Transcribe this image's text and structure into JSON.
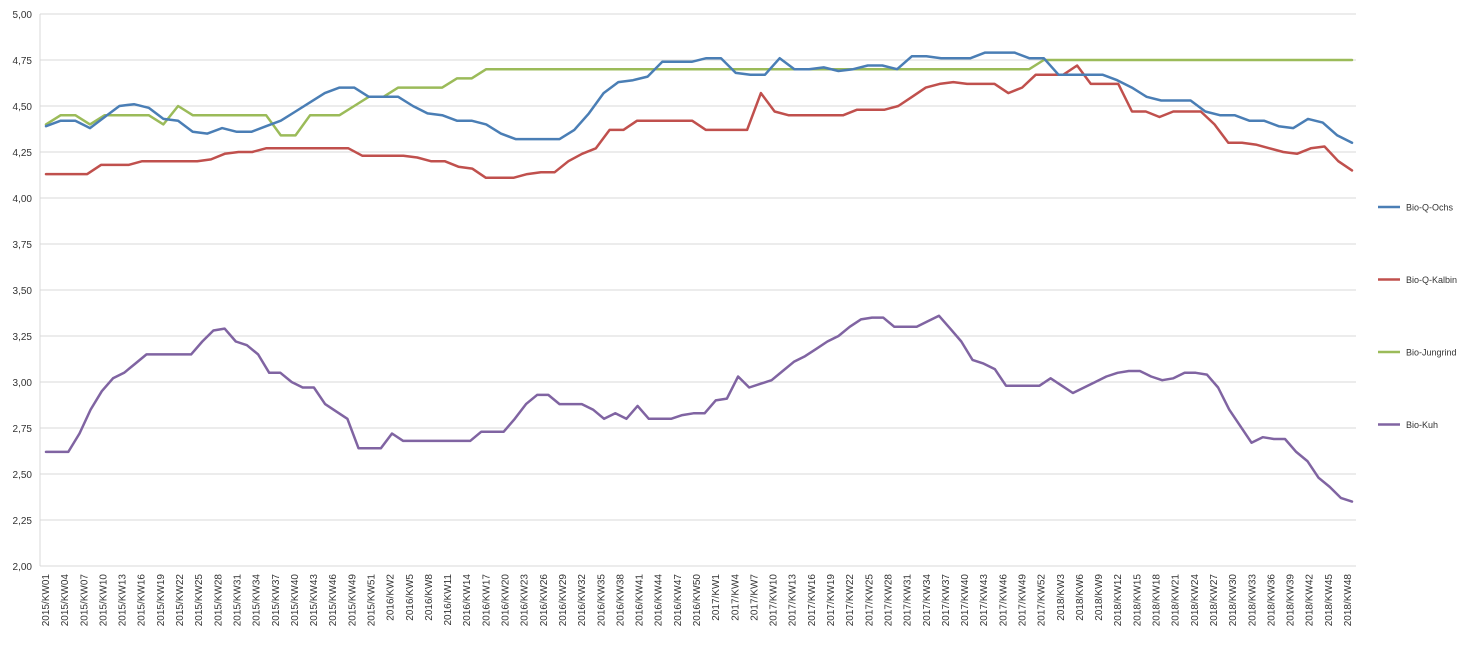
{
  "chart_data": {
    "type": "line",
    "title": "",
    "xlabel": "",
    "ylabel": "",
    "ylim": [
      2.0,
      5.0
    ],
    "y_ticks": [
      "2,00",
      "2,25",
      "2,50",
      "2,75",
      "3,00",
      "3,25",
      "3,50",
      "3,75",
      "4,00",
      "4,25",
      "4,50",
      "4,75",
      "5,00"
    ],
    "grid": "horizontal",
    "legend_position": "right",
    "x_tick_labels": [
      "2015/KW01",
      "2015/KW04",
      "2015/KW07",
      "2015/KW10",
      "2015/KW13",
      "2015/KW16",
      "2015/KW19",
      "2015/KW22",
      "2015/KW25",
      "2015/KW28",
      "2015/KW31",
      "2015/KW34",
      "2015/KW37",
      "2015/KW40",
      "2015/KW43",
      "2015/KW46",
      "2015/KW49",
      "2015/KW51",
      "2016/KW2",
      "2016/KW5",
      "2016/KW8",
      "2016/KW11",
      "2016/KW14",
      "2016/KW17",
      "2016/KW20",
      "2016/KW23",
      "2016/KW26",
      "2016/KW29",
      "2016/KW32",
      "2016/KW35",
      "2016/KW38",
      "2016/KW41",
      "2016/KW44",
      "2016/KW47",
      "2016/KW50",
      "2017/KW1",
      "2017/KW4",
      "2017/KW7",
      "2017/KW10",
      "2017/KW13",
      "2017/KW16",
      "2017/KW19",
      "2017/KW22",
      "2017/KW25",
      "2017/KW28",
      "2017/KW31",
      "2017/KW34",
      "2017/KW37",
      "2017/KW40",
      "2017/KW43",
      "2017/KW46",
      "2017/KW49",
      "2017/KW52",
      "2018/KW3",
      "2018/KW6",
      "2018/KW9",
      "2018/KW12",
      "2018/KW15",
      "2018/KW18",
      "2018/KW21",
      "2018/KW24",
      "2018/KW27",
      "2018/KW30",
      "2018/KW33",
      "2018/KW36",
      "2018/KW39",
      "2018/KW42",
      "2018/KW45",
      "2018/KW48"
    ],
    "series": [
      {
        "name": "Bio-Q-Ochs",
        "color": "#4a7eb5",
        "values": [
          4.39,
          4.42,
          4.42,
          4.38,
          4.44,
          4.5,
          4.51,
          4.49,
          4.43,
          4.42,
          4.36,
          4.35,
          4.38,
          4.36,
          4.36,
          4.39,
          4.42,
          4.47,
          4.52,
          4.57,
          4.6,
          4.6,
          4.55,
          4.55,
          4.55,
          4.5,
          4.46,
          4.45,
          4.42,
          4.42,
          4.4,
          4.35,
          4.32,
          4.32,
          4.32,
          4.32,
          4.37,
          4.46,
          4.57,
          4.63,
          4.64,
          4.66,
          4.74,
          4.74,
          4.74,
          4.76,
          4.76,
          4.68,
          4.67,
          4.67,
          4.76,
          4.7,
          4.7,
          4.71,
          4.69,
          4.7,
          4.72,
          4.72,
          4.7,
          4.77,
          4.77,
          4.76,
          4.76,
          4.76,
          4.79,
          4.79,
          4.79,
          4.76,
          4.76,
          4.67,
          4.67,
          4.67,
          4.67,
          4.64,
          4.6,
          4.55,
          4.53,
          4.53,
          4.53,
          4.47,
          4.45,
          4.45,
          4.42,
          4.42,
          4.39,
          4.38,
          4.43,
          4.41,
          4.34,
          4.3
        ]
      },
      {
        "name": "Bio-Q-Kalbin",
        "color": "#c0504d",
        "values": [
          4.13,
          4.13,
          4.13,
          4.13,
          4.18,
          4.18,
          4.18,
          4.2,
          4.2,
          4.2,
          4.2,
          4.2,
          4.21,
          4.24,
          4.25,
          4.25,
          4.27,
          4.27,
          4.27,
          4.27,
          4.27,
          4.27,
          4.27,
          4.23,
          4.23,
          4.23,
          4.23,
          4.22,
          4.2,
          4.2,
          4.17,
          4.16,
          4.11,
          4.11,
          4.11,
          4.13,
          4.14,
          4.14,
          4.2,
          4.24,
          4.27,
          4.37,
          4.37,
          4.42,
          4.42,
          4.42,
          4.42,
          4.42,
          4.37,
          4.37,
          4.37,
          4.37,
          4.57,
          4.47,
          4.45,
          4.45,
          4.45,
          4.45,
          4.45,
          4.48,
          4.48,
          4.48,
          4.5,
          4.55,
          4.6,
          4.62,
          4.63,
          4.62,
          4.62,
          4.62,
          4.57,
          4.6,
          4.67,
          4.67,
          4.67,
          4.72,
          4.62,
          4.62,
          4.62,
          4.47,
          4.47,
          4.44,
          4.47,
          4.47,
          4.47,
          4.4,
          4.3,
          4.3,
          4.29,
          4.27,
          4.25,
          4.24,
          4.27,
          4.28,
          4.2,
          4.15
        ]
      },
      {
        "name": "Bio-Jungrind",
        "color": "#9bbb59",
        "values": [
          4.4,
          4.45,
          4.45,
          4.4,
          4.45,
          4.45,
          4.45,
          4.45,
          4.4,
          4.5,
          4.45,
          4.45,
          4.45,
          4.45,
          4.45,
          4.45,
          4.34,
          4.34,
          4.45,
          4.45,
          4.45,
          4.5,
          4.55,
          4.55,
          4.6,
          4.6,
          4.6,
          4.6,
          4.65,
          4.65,
          4.7,
          4.7,
          4.7,
          4.7,
          4.7,
          4.7,
          4.7,
          4.7,
          4.7,
          4.7,
          4.7,
          4.7,
          4.7,
          4.7,
          4.7,
          4.7,
          4.7,
          4.7,
          4.7,
          4.7,
          4.7,
          4.7,
          4.7,
          4.7,
          4.7,
          4.7,
          4.7,
          4.7,
          4.7,
          4.7,
          4.7,
          4.7,
          4.7,
          4.7,
          4.7,
          4.7,
          4.7,
          4.7,
          4.75,
          4.75,
          4.75,
          4.75,
          4.75,
          4.75,
          4.75,
          4.75,
          4.75,
          4.75,
          4.75,
          4.75,
          4.75,
          4.75,
          4.75,
          4.75,
          4.75,
          4.75,
          4.75,
          4.75,
          4.75,
          4.75
        ]
      },
      {
        "name": "Bio-Kuh",
        "color": "#8064a2",
        "values": [
          2.62,
          2.62,
          2.62,
          2.72,
          2.85,
          2.95,
          3.02,
          3.05,
          3.1,
          3.15,
          3.15,
          3.15,
          3.15,
          3.15,
          3.22,
          3.28,
          3.29,
          3.22,
          3.2,
          3.15,
          3.05,
          3.05,
          3.0,
          2.97,
          2.97,
          2.88,
          2.84,
          2.8,
          2.64,
          2.64,
          2.64,
          2.72,
          2.68,
          2.68,
          2.68,
          2.68,
          2.68,
          2.68,
          2.68,
          2.73,
          2.73,
          2.73,
          2.8,
          2.88,
          2.93,
          2.93,
          2.88,
          2.88,
          2.88,
          2.85,
          2.8,
          2.83,
          2.8,
          2.87,
          2.8,
          2.8,
          2.8,
          2.82,
          2.83,
          2.83,
          2.9,
          2.91,
          3.03,
          2.97,
          2.99,
          3.01,
          3.06,
          3.11,
          3.14,
          3.18,
          3.22,
          3.25,
          3.3,
          3.34,
          3.35,
          3.35,
          3.3,
          3.3,
          3.3,
          3.33,
          3.36,
          3.29,
          3.22,
          3.12,
          3.1,
          3.07,
          2.98,
          2.98,
          2.98,
          2.98,
          3.02,
          2.98,
          2.94,
          2.97,
          3.0,
          3.03,
          3.05,
          3.06,
          3.06,
          3.03,
          3.01,
          3.02,
          3.05,
          3.05,
          3.04,
          2.97,
          2.85,
          2.76,
          2.67,
          2.7,
          2.69,
          2.69,
          2.62,
          2.57,
          2.48,
          2.43,
          2.37,
          2.35
        ]
      }
    ]
  }
}
